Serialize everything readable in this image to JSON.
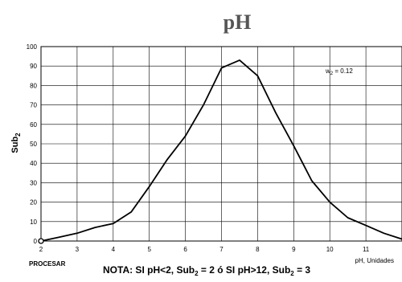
{
  "page_title": "pH",
  "procesar_label": "PROCESAR",
  "weight_label": {
    "prefix": "w",
    "sub": "2",
    "suffix": " = 0.12"
  },
  "note": {
    "t1": "NOTA: SI pH<2, Sub",
    "s1": "2",
    "t2": " = 2 ó SI pH>12, Sub",
    "s2": "2",
    "t3": " = 3"
  },
  "chart_data": {
    "type": "line",
    "title": "pH",
    "xlabel": "pH, Unidades",
    "ylabel": {
      "main": "Sub",
      "sub": "2"
    },
    "xlim": [
      2,
      12
    ],
    "ylim": [
      0,
      100
    ],
    "grid": true,
    "x_ticks": [
      "2",
      "3",
      "4",
      "5",
      "6",
      "7",
      "8",
      "9",
      "10",
      "11"
    ],
    "y_ticks": [
      "0",
      "10",
      "20",
      "30",
      "40",
      "50",
      "60",
      "70",
      "80",
      "90",
      "100"
    ],
    "series": [
      {
        "x": [
          2.0,
          2.5,
          3.0,
          3.5,
          4.0,
          4.5,
          5.0,
          5.5,
          6.0,
          6.5,
          7.0,
          7.5,
          8.0,
          8.5,
          9.0,
          9.5,
          10.0,
          10.5,
          11.0,
          11.5,
          12.0
        ],
        "y": [
          0,
          2,
          4,
          7,
          9,
          15,
          28,
          42,
          54,
          70,
          89,
          93,
          85,
          66,
          49,
          31,
          20,
          12,
          8,
          4,
          1
        ],
        "color": "#000000"
      }
    ]
  }
}
